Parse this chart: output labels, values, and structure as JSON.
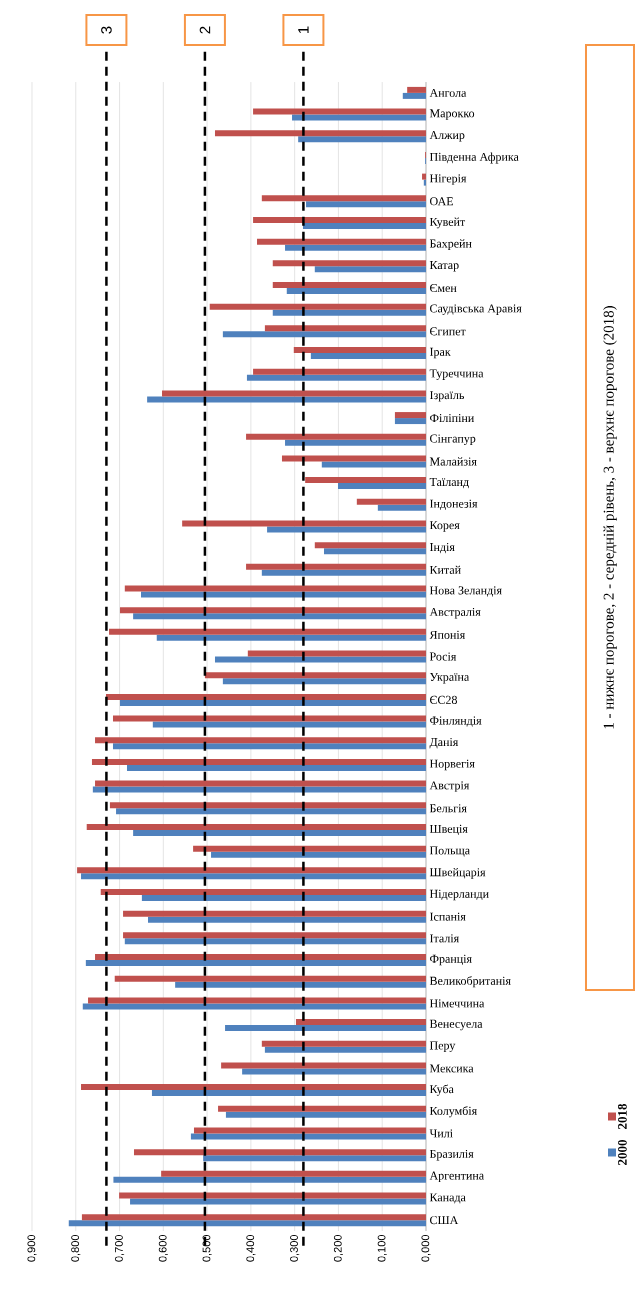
{
  "chart_data": {
    "type": "bar",
    "orientation": "horizontal",
    "categories": [
      "Ангола",
      "Марокко",
      "Алжир",
      "Південна Африка",
      "Нігерія",
      "ОАЕ",
      "Кувейт",
      "Бахрейн",
      "Катар",
      "Ємен",
      "Саудівська Аравія",
      "Єгипет",
      "Ірак",
      "Туреччина",
      "Ізраїль",
      "Філіпіни",
      "Сінгапур",
      "Малайзія",
      "Таїланд",
      "Індонезія",
      "Корея",
      "Індія",
      "Китай",
      "Нова Зеландія",
      "Австралія",
      "Японія",
      "Росія",
      "Україна",
      "ЄС28",
      "Фінляндія",
      "Данія",
      "Норвегія",
      "Австрія",
      "Бельгія",
      "Швеція",
      "Польща",
      "Швейцарія",
      "Нідерланди",
      "Іспанія",
      "Італія",
      "Франція",
      "Великобританія",
      "Німеччина",
      "Венесуела",
      "Перу",
      "Мексика",
      "Куба",
      "Колумбія",
      "Чилі",
      "Бразилія",
      "Аргентина",
      "Канада",
      "США"
    ],
    "series": [
      {
        "name": "2000",
        "color": "#4f81bd",
        "values": [
          0.053,
          0.306,
          0.292,
          0.002,
          0.005,
          0.274,
          0.281,
          0.322,
          0.254,
          0.318,
          0.35,
          0.464,
          0.263,
          0.409,
          0.637,
          0.071,
          0.322,
          0.238,
          0.201,
          0.11,
          0.363,
          0.233,
          0.375,
          0.651,
          0.669,
          0.615,
          0.482,
          0.464,
          0.699,
          0.624,
          0.715,
          0.683,
          0.761,
          0.708,
          0.669,
          0.491,
          0.788,
          0.649,
          0.635,
          0.688,
          0.777,
          0.573,
          0.784,
          0.459,
          0.368,
          0.42,
          0.626,
          0.457,
          0.537,
          0.509,
          0.714,
          0.676,
          0.816
        ]
      },
      {
        "name": "2018",
        "color": "#c0504d",
        "values": [
          0.043,
          0.395,
          0.482,
          0.002,
          0.009,
          0.375,
          0.395,
          0.386,
          0.35,
          0.35,
          0.494,
          0.368,
          0.302,
          0.395,
          0.603,
          0.071,
          0.411,
          0.329,
          0.276,
          0.158,
          0.557,
          0.254,
          0.411,
          0.688,
          0.699,
          0.724,
          0.407,
          0.505,
          0.731,
          0.715,
          0.756,
          0.763,
          0.756,
          0.722,
          0.775,
          0.532,
          0.797,
          0.743,
          0.692,
          0.692,
          0.756,
          0.711,
          0.772,
          0.297,
          0.375,
          0.468,
          0.788,
          0.475,
          0.53,
          0.667,
          0.605,
          0.701,
          0.786
        ]
      }
    ],
    "xlim": [
      0.9,
      0
    ],
    "xticks": [
      {
        "value": 0,
        "label": "0,000"
      },
      {
        "value": 0.1,
        "label": "0,100"
      },
      {
        "value": 0.2,
        "label": "0,200"
      },
      {
        "value": 0.3,
        "label": "0,300"
      },
      {
        "value": 0.4,
        "label": "0,400"
      },
      {
        "value": 0.5,
        "label": "0,500"
      },
      {
        "value": 0.6,
        "label": "0,600"
      },
      {
        "value": 0.7,
        "label": "0,700"
      },
      {
        "value": 0.8,
        "label": "0,800"
      },
      {
        "value": 0.9,
        "label": "0,900"
      }
    ],
    "grid": "x",
    "legend": "bottom right",
    "ref_lines": [
      {
        "axis": "x",
        "value": 0.28,
        "color": "#000000",
        "line_style": "dashed"
      },
      {
        "axis": "x",
        "value": 0.505,
        "color": "#000000",
        "line_style": "dashed"
      },
      {
        "axis": "x",
        "value": 0.73,
        "color": "#000000",
        "line_style": "dashed"
      }
    ],
    "annotations": [
      "1 - нижнє порогове, 2 - середній рівень, 3 - верхнє порогове  (2018)",
      "1",
      "2",
      "3"
    ]
  }
}
